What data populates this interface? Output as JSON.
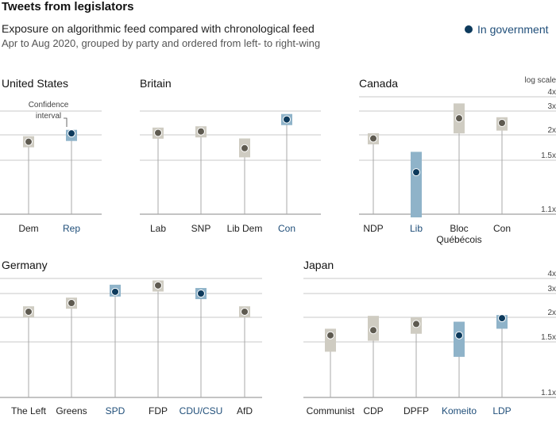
{
  "header": {
    "title": "Tweets from legislators",
    "subtitle": "Exposure on algorithmic feed compared with chronological feed",
    "subtitle2": "Apr to Aug 2020, grouped by party and ordered from left- to right-wing",
    "legend_label": "In government"
  },
  "colors": {
    "government_box": "#8fb3c9",
    "government_dot": "#0d3a5c",
    "opposition_box": "#cfccc2",
    "opposition_dot": "#5e5a50",
    "government_label": "#1f4e79",
    "grid": "#b8b8b8",
    "stem": "#a8a8a8"
  },
  "chart_data": {
    "type": "scatter",
    "scale": "log",
    "scale_label": "log scale",
    "y_ticks": [
      {
        "value": 1.1,
        "label": "1.1x"
      },
      {
        "value": 1.5,
        "label": "1.5x"
      },
      {
        "value": 2,
        "label": "2x"
      },
      {
        "value": 3,
        "label": "3x"
      },
      {
        "value": 4,
        "label": "4x"
      }
    ],
    "annotation": "Confidence interval",
    "panels": [
      {
        "country": "United States",
        "parties": [
          {
            "name": "Dem",
            "estimate": 1.85,
            "low": 1.85,
            "high": 1.85,
            "government": false
          },
          {
            "name": "Rep",
            "estimate": 2.05,
            "low": 1.9,
            "high": 2.12,
            "government": true
          }
        ]
      },
      {
        "country": "Britain",
        "parties": [
          {
            "name": "Lab",
            "estimate": 2.07,
            "low": 1.97,
            "high": 2.17,
            "government": false
          },
          {
            "name": "SNP",
            "estimate": 2.12,
            "low": 1.98,
            "high": 2.25,
            "government": false
          },
          {
            "name": "Lib Dem",
            "estimate": 1.72,
            "low": 1.55,
            "high": 1.92,
            "government": false
          },
          {
            "name": "Con",
            "estimate": 2.6,
            "low": 2.45,
            "high": 2.75,
            "government": true
          }
        ]
      },
      {
        "country": "Canada",
        "parties": [
          {
            "name": "NDP",
            "estimate": 1.92,
            "low": 1.8,
            "high": 2.05,
            "government": false
          },
          {
            "name": "Lib",
            "estimate": 1.4,
            "low": 1.08,
            "high": 1.65,
            "government": true
          },
          {
            "name": "Bloc\nQuébécois",
            "estimate": 2.65,
            "low": 2.05,
            "high": 3.5,
            "government": false
          },
          {
            "name": "Con",
            "estimate": 2.45,
            "low": 2.15,
            "high": 2.7,
            "government": false
          }
        ]
      },
      {
        "country": "Germany",
        "parties": [
          {
            "name": "The Left",
            "estimate": 2.2,
            "low": 2.05,
            "high": 2.35,
            "government": false
          },
          {
            "name": "Greens",
            "estimate": 2.55,
            "low": 2.38,
            "high": 2.72,
            "government": false
          },
          {
            "name": "SPD",
            "estimate": 3.1,
            "low": 2.85,
            "high": 3.55,
            "government": true
          },
          {
            "name": "FDP",
            "estimate": 3.5,
            "low": 3.2,
            "high": 3.75,
            "government": false
          },
          {
            "name": "CDU/CSU",
            "estimate": 3.0,
            "low": 2.75,
            "high": 3.3,
            "government": true
          },
          {
            "name": "AfD",
            "estimate": 2.2,
            "low": 2.05,
            "high": 2.35,
            "government": false
          }
        ]
      },
      {
        "country": "Japan",
        "parties": [
          {
            "name": "Communist",
            "estimate": 1.62,
            "low": 1.42,
            "high": 1.75,
            "government": false
          },
          {
            "name": "CDP",
            "estimate": 1.72,
            "low": 1.52,
            "high": 2.05,
            "government": false
          },
          {
            "name": "DPFP",
            "estimate": 1.85,
            "low": 1.65,
            "high": 2.0,
            "government": false
          },
          {
            "name": "Komeito",
            "estimate": 1.62,
            "low": 1.38,
            "high": 1.9,
            "government": true
          },
          {
            "name": "LDP",
            "estimate": 1.98,
            "low": 1.75,
            "high": 2.08,
            "government": true
          }
        ]
      }
    ]
  }
}
